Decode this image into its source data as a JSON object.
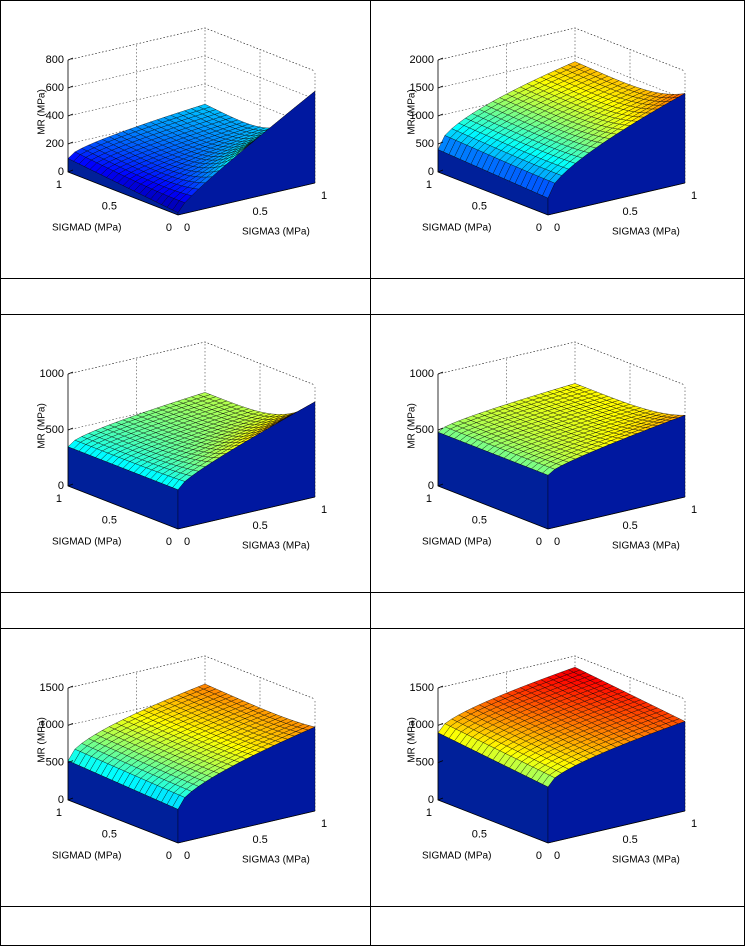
{
  "figures": [
    {
      "z_label": "MR (MPa)",
      "x_label": "SIGMAD (MPa)",
      "y_label": "SIGMA3 (MPa)",
      "z_ticks": [
        0,
        200,
        400,
        600,
        800
      ],
      "x_ticks": [
        1,
        0.5,
        0
      ],
      "y_ticks": [
        0,
        0.5,
        1
      ]
    },
    {
      "z_label": "MR (MPa)",
      "x_label": "SIGMAD (MPa)",
      "y_label": "SIGMA3 (MPa)",
      "z_ticks": [
        0,
        500,
        1000,
        1500,
        2000
      ],
      "x_ticks": [
        1,
        0.5,
        0
      ],
      "y_ticks": [
        0,
        0.5,
        1
      ]
    },
    {
      "z_label": "MR (MPa)",
      "x_label": "SIGMAD (MPa)",
      "y_label": "SIGMA3 (MPa)",
      "z_ticks": [
        0,
        500,
        1000
      ],
      "x_ticks": [
        1,
        0.5,
        0
      ],
      "y_ticks": [
        0,
        0.5,
        1
      ]
    },
    {
      "z_label": "MR (MPa)",
      "x_label": "SIGMAD (MPa)",
      "y_label": "SIGMA3 (MPa)",
      "z_ticks": [
        0,
        500,
        1000
      ],
      "x_ticks": [
        1,
        0.5,
        0
      ],
      "y_ticks": [
        0,
        0.5,
        1
      ]
    },
    {
      "z_label": "MR (MPa)",
      "x_label": "SIGMAD (MPa)",
      "y_label": "SIGMA3 (MPa)",
      "z_ticks": [
        0,
        500,
        1000,
        1500
      ],
      "x_ticks": [
        1,
        0.5,
        0
      ],
      "y_ticks": [
        0,
        0.5,
        1
      ]
    },
    {
      "z_label": "MR (MPa)",
      "x_label": "SIGMAD (MPa)",
      "y_label": "SIGMA3 (MPa)",
      "z_ticks": [
        0,
        500,
        1000,
        1500
      ],
      "x_ticks": [
        1,
        0.5,
        0
      ],
      "y_ticks": [
        0,
        0.5,
        1
      ]
    }
  ]
}
